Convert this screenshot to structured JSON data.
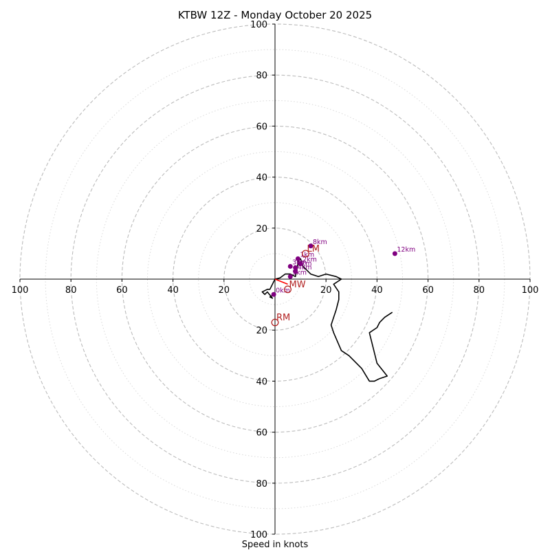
{
  "chart_data": {
    "type": "hodograph",
    "title": "KTBW 12Z - Monday October 20 2025",
    "xlabel": "Speed in knots",
    "units": "knots",
    "range": [
      -100,
      100
    ],
    "dashed_rings": [
      20,
      40,
      60,
      80,
      100
    ],
    "dotted_rings": [
      10,
      30,
      50,
      70,
      90
    ],
    "x_tick_labels": [
      {
        "value": -100,
        "label": "100"
      },
      {
        "value": -80,
        "label": "80"
      },
      {
        "value": -60,
        "label": "60"
      },
      {
        "value": -40,
        "label": "40"
      },
      {
        "value": -20,
        "label": "20"
      },
      {
        "value": 20,
        "label": "20"
      },
      {
        "value": 40,
        "label": "40"
      },
      {
        "value": 60,
        "label": "60"
      },
      {
        "value": 80,
        "label": "80"
      },
      {
        "value": 100,
        "label": "100"
      }
    ],
    "y_tick_labels": [
      {
        "value": 100,
        "label": "100"
      },
      {
        "value": 80,
        "label": "80"
      },
      {
        "value": 60,
        "label": "60"
      },
      {
        "value": 40,
        "label": "40"
      },
      {
        "value": 20,
        "label": "20"
      },
      {
        "value": -20,
        "label": "20"
      },
      {
        "value": -40,
        "label": "40"
      },
      {
        "value": -60,
        "label": "60"
      },
      {
        "value": -80,
        "label": "80"
      },
      {
        "value": -100,
        "label": "100"
      }
    ],
    "hodograph_line": {
      "color": "#000000",
      "u": [
        -0.5,
        -2,
        -1,
        -3,
        -4,
        -5,
        -4,
        -3,
        -2,
        0,
        2,
        4,
        6,
        8,
        9,
        9,
        10,
        11,
        14,
        17,
        20,
        24,
        26,
        23,
        25,
        25,
        24,
        23,
        22,
        23,
        26,
        29,
        34,
        37,
        39,
        41,
        44,
        40,
        37,
        40,
        41,
        43,
        46
      ],
      "v": [
        -6,
        -7,
        -7.5,
        -5,
        -6,
        -5,
        -4.5,
        -4,
        -4,
        0,
        0.5,
        2,
        2,
        1,
        6,
        7,
        8,
        5,
        2,
        1,
        2,
        1,
        0,
        -2,
        -5,
        -8,
        -12,
        -15,
        -18,
        -21,
        -28,
        -30,
        -35,
        -40,
        -40,
        -39,
        -38,
        -33,
        -21,
        -19,
        -17,
        -15,
        -13
      ]
    },
    "height_markers": [
      {
        "label": "0km",
        "u": -0.5,
        "v": -6
      },
      {
        "label": "1km",
        "u": 9,
        "v": 8
      },
      {
        "label": "2km",
        "u": 10,
        "v": 6
      },
      {
        "label": "3km",
        "u": 6,
        "v": 5
      },
      {
        "label": "4km",
        "u": 8,
        "v": 3
      },
      {
        "label": "5km",
        "u": 6,
        "v": 1
      },
      {
        "label": "6km",
        "u": 8,
        "v": 4.5
      },
      {
        "label": "8km",
        "u": 14,
        "v": 13
      },
      {
        "label": "12km",
        "u": 47,
        "v": 10
      }
    ],
    "points": [
      {
        "label": "LM",
        "u": 12,
        "v": 10
      },
      {
        "label": "MW",
        "u": 5,
        "v": -4
      },
      {
        "label": "RM",
        "u": 0,
        "v": -17
      }
    ],
    "shear_vector": {
      "from_u": 0,
      "from_v": 0,
      "to_u": 5,
      "to_v": -2
    },
    "colors": {
      "line": "#000000",
      "marker": "#800080",
      "storm_motion": "#b22222",
      "shear": "#ff0000",
      "grid": "#bbbbbb",
      "axis": "#000000"
    }
  }
}
